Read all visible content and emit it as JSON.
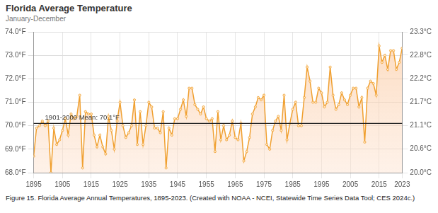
{
  "chart_data": {
    "type": "line",
    "title": "Florida Average Temperature",
    "subtitle": "January-December",
    "caption": "Figure 15. Florida Average Annual Temperatures, 1895-2023. (Created with NOAA - NCEI, Statewide Time Series Data Tool; CES 2024c.)",
    "x": [
      1895,
      1896,
      1897,
      1898,
      1899,
      1900,
      1901,
      1902,
      1903,
      1904,
      1905,
      1906,
      1907,
      1908,
      1909,
      1910,
      1911,
      1912,
      1913,
      1914,
      1915,
      1916,
      1917,
      1918,
      1919,
      1920,
      1921,
      1922,
      1923,
      1924,
      1925,
      1926,
      1927,
      1928,
      1929,
      1930,
      1931,
      1932,
      1933,
      1934,
      1935,
      1936,
      1937,
      1938,
      1939,
      1940,
      1941,
      1942,
      1943,
      1944,
      1945,
      1946,
      1947,
      1948,
      1949,
      1950,
      1951,
      1952,
      1953,
      1954,
      1955,
      1956,
      1957,
      1958,
      1959,
      1960,
      1961,
      1962,
      1963,
      1964,
      1965,
      1966,
      1967,
      1968,
      1969,
      1970,
      1971,
      1972,
      1973,
      1974,
      1975,
      1976,
      1977,
      1978,
      1979,
      1980,
      1981,
      1982,
      1983,
      1984,
      1985,
      1986,
      1987,
      1988,
      1989,
      1990,
      1991,
      1992,
      1993,
      1994,
      1995,
      1996,
      1997,
      1998,
      1999,
      2000,
      2001,
      2002,
      2003,
      2004,
      2005,
      2006,
      2007,
      2008,
      2009,
      2010,
      2011,
      2012,
      2013,
      2014,
      2015,
      2016,
      2017,
      2018,
      2019,
      2020,
      2021,
      2022,
      2023
    ],
    "values": [
      68.7,
      69.9,
      70.0,
      70.2,
      70.0,
      70.2,
      68.0,
      69.9,
      69.2,
      69.4,
      69.8,
      70.3,
      69.6,
      70.5,
      70.3,
      70.4,
      71.3,
      68.2,
      70.6,
      70.5,
      70.5,
      69.6,
      69.1,
      69.6,
      69.1,
      68.8,
      70.4,
      69.8,
      69.0,
      70.2,
      71.0,
      70.0,
      69.5,
      69.7,
      70.0,
      71.1,
      69.2,
      70.6,
      69.2,
      70.0,
      71.0,
      70.8,
      69.9,
      69.9,
      69.7,
      70.6,
      68.2,
      69.9,
      69.6,
      70.3,
      70.3,
      70.7,
      71.1,
      70.4,
      71.6,
      71.6,
      70.9,
      70.7,
      70.5,
      70.8,
      70.3,
      70.2,
      70.3,
      68.9,
      70.6,
      69.4,
      70.0,
      69.4,
      69.6,
      70.2,
      69.5,
      69.4,
      70.1,
      68.5,
      68.9,
      69.5,
      70.5,
      70.8,
      71.2,
      71.1,
      71.3,
      69.2,
      69.0,
      69.8,
      70.2,
      70.4,
      69.8,
      71.3,
      69.4,
      70.1,
      70.7,
      71.0,
      70.0,
      70.0,
      71.2,
      72.5,
      71.9,
      71.0,
      71.0,
      71.6,
      71.4,
      70.8,
      71.0,
      72.5,
      71.3,
      70.7,
      70.9,
      71.4,
      71.1,
      70.9,
      71.3,
      71.6,
      71.6,
      70.8,
      71.2,
      69.3,
      71.6,
      71.9,
      71.8,
      71.3,
      73.4,
      72.7,
      73.0,
      72.4,
      73.2,
      73.2,
      72.4,
      72.7,
      73.3
    ],
    "color": "#f0a030",
    "marker": "circle",
    "grid": true,
    "xlim": [
      1895,
      2023
    ],
    "xticks": [
      1895,
      1905,
      1915,
      1925,
      1935,
      1945,
      1955,
      1965,
      1975,
      1985,
      1995,
      2005,
      2015,
      2023
    ],
    "ylim": [
      68,
      74
    ],
    "yticks": [
      {
        "value": 68,
        "label": "68.0°F"
      },
      {
        "value": 69,
        "label": "69.0°F"
      },
      {
        "value": 70,
        "label": "70.0°F"
      },
      {
        "value": 71,
        "label": "71.0°F"
      },
      {
        "value": 72,
        "label": "72.0°F"
      },
      {
        "value": 73,
        "label": "73.0°F"
      },
      {
        "value": 74,
        "label": "74.0°F"
      }
    ],
    "y2lim": [
      20,
      23.33
    ],
    "y2ticks": [
      {
        "value": 20,
        "label": "20.0°C"
      },
      {
        "value": 20.56,
        "label": "20.6°C"
      },
      {
        "value": 21.11,
        "label": "21.1°C"
      },
      {
        "value": 21.67,
        "label": "21.7°C"
      },
      {
        "value": 22.22,
        "label": "22.2°C"
      },
      {
        "value": 22.78,
        "label": "22.8°C"
      },
      {
        "value": 23.33,
        "label": "23.3°C"
      }
    ],
    "mean": {
      "value": 70.1,
      "label": "1901-2000 Mean: 70.1°F"
    }
  }
}
